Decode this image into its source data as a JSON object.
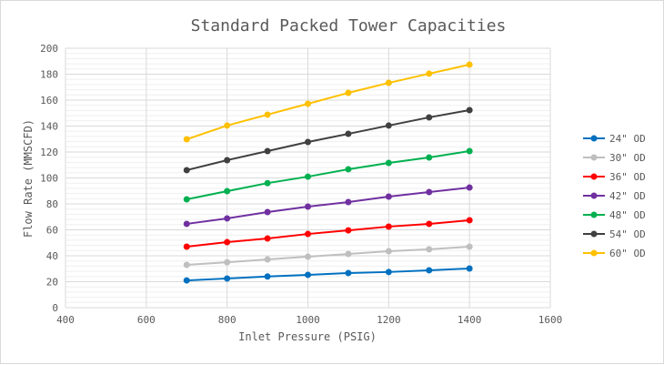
{
  "chart_data": {
    "type": "line",
    "title": "Standard Packed Tower Capacities",
    "xlabel": "Inlet Pressure (PSIG)",
    "ylabel": "Flow Rate (MMSCFD)",
    "xlim": [
      400,
      1600
    ],
    "ylim": [
      0,
      200
    ],
    "xticks": [
      400,
      600,
      800,
      1000,
      1200,
      1400,
      1600
    ],
    "yticks": [
      0,
      20,
      40,
      60,
      80,
      100,
      120,
      140,
      160,
      180,
      200
    ],
    "grid": true,
    "legend": "right",
    "x": [
      700,
      800,
      900,
      1000,
      1100,
      1200,
      1300,
      1400
    ],
    "series": [
      {
        "name": "24\" OD",
        "color": "#0070c0",
        "values": [
          21,
          22.5,
          24,
          25.3,
          26.7,
          27.5,
          28.8,
          30.2
        ]
      },
      {
        "name": "30\" OD",
        "color": "#bfbfbf",
        "values": [
          33,
          35,
          37.2,
          39.3,
          41.4,
          43.5,
          45,
          47
        ]
      },
      {
        "name": "36\" OD",
        "color": "#ff0000",
        "values": [
          47,
          50.5,
          53.3,
          56.8,
          59.6,
          62.5,
          64.6,
          67.4
        ]
      },
      {
        "name": "42\" OD",
        "color": "#7030a0",
        "values": [
          64.6,
          68.8,
          73.7,
          77.9,
          81.4,
          85.6,
          89.1,
          92.6
        ]
      },
      {
        "name": "48\" OD",
        "color": "#00b050",
        "values": [
          83.5,
          89.8,
          96,
          101,
          106.7,
          111.6,
          115.8,
          120.7
        ]
      },
      {
        "name": "54\" OD",
        "color": "#404040",
        "values": [
          106,
          113.7,
          120.7,
          127.7,
          134,
          140.4,
          146.7,
          152.3
        ]
      },
      {
        "name": "60\" OD",
        "color": "#ffc000",
        "values": [
          129.8,
          140.4,
          148.8,
          157.2,
          165.6,
          173.3,
          180.4,
          187.4
        ]
      }
    ]
  }
}
